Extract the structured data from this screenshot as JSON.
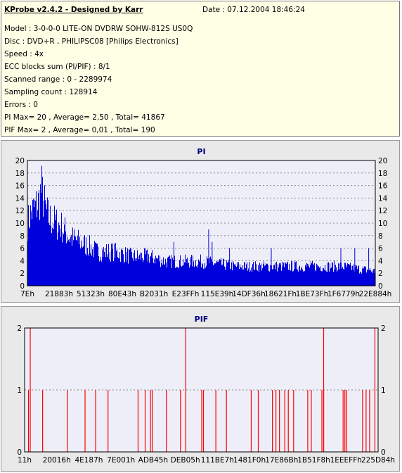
{
  "header": {
    "title": "KProbe v2.4.2 - Designed by Karr",
    "date": "Date : 07.12.2004 18:46:24",
    "lines": [
      "Model : 3-0-0-0 LITE-ON DVDRW SOHW-812S  US0Q",
      "Disc : DVD+R , PHILIPSC08 [Philips Electronics]",
      "Speed : 4x",
      "ECC blocks sum (PI/PIF) : 8/1",
      "Scanned range : 0 - 2289974",
      "Sampling count : 128914",
      "Errors : 0",
      "PI Max= 20 , Average= 2,50 , Total= 41867",
      "PIF Max= 2 , Average= 0,01 , Total= 190"
    ]
  },
  "chart_data": [
    {
      "type": "bar",
      "title": "PI",
      "ylim": [
        0,
        20
      ],
      "yticks": [
        0,
        2,
        4,
        6,
        8,
        10,
        12,
        14,
        16,
        18,
        20
      ],
      "xticks": [
        "7Eh",
        "21883h",
        "51323h",
        "80E43h",
        "B2031h",
        "E23FFh",
        "115E39h",
        "14DF36h",
        "18621Fh",
        "1BE73Fh",
        "1F6779h",
        "22E884h"
      ],
      "grid": true,
      "color": "#0000dd",
      "envelope": [
        [
          0,
          13
        ],
        [
          0.01,
          15
        ],
        [
          0.02,
          16
        ],
        [
          0.03,
          17
        ],
        [
          0.04,
          20
        ],
        [
          0.05,
          16
        ],
        [
          0.06,
          14
        ],
        [
          0.08,
          13
        ],
        [
          0.1,
          12
        ],
        [
          0.12,
          10
        ],
        [
          0.15,
          9
        ],
        [
          0.18,
          8
        ],
        [
          0.2,
          7
        ],
        [
          0.25,
          7
        ],
        [
          0.3,
          6
        ],
        [
          0.35,
          6
        ],
        [
          0.4,
          5
        ],
        [
          0.5,
          5
        ],
        [
          0.6,
          4
        ],
        [
          0.7,
          4
        ],
        [
          0.8,
          4
        ],
        [
          0.9,
          4
        ],
        [
          1,
          3
        ]
      ],
      "spikes": [
        [
          0.52,
          9
        ],
        [
          0.53,
          7
        ],
        [
          0.42,
          7
        ],
        [
          0.58,
          6
        ],
        [
          0.7,
          6
        ],
        [
          0.9,
          6
        ],
        [
          0.94,
          6
        ],
        [
          0.98,
          6
        ]
      ]
    },
    {
      "type": "bar",
      "title": "PIF",
      "ylim": [
        0,
        2
      ],
      "yticks": [
        0,
        1,
        2
      ],
      "xticks": [
        "11h",
        "20016h",
        "4E187h",
        "7E001h",
        "ADB45h",
        "DEB05h",
        "111BE7h",
        "1481F0h",
        "17E86Bh",
        "1B51F8h",
        "1EEEFFh",
        "225D84h"
      ],
      "grid": true,
      "color": "#ff0000",
      "values_at": [
        [
          0.01,
          1
        ],
        [
          0.015,
          2
        ],
        [
          0.05,
          1
        ],
        [
          0.12,
          1
        ],
        [
          0.17,
          1
        ],
        [
          0.2,
          1
        ],
        [
          0.235,
          1
        ],
        [
          0.32,
          1
        ],
        [
          0.34,
          1
        ],
        [
          0.355,
          1
        ],
        [
          0.36,
          1
        ],
        [
          0.4,
          1
        ],
        [
          0.44,
          1
        ],
        [
          0.455,
          2
        ],
        [
          0.5,
          1
        ],
        [
          0.505,
          1
        ],
        [
          0.54,
          1
        ],
        [
          0.57,
          1
        ],
        [
          0.64,
          1
        ],
        [
          0.66,
          1
        ],
        [
          0.7,
          1
        ],
        [
          0.71,
          1
        ],
        [
          0.72,
          1
        ],
        [
          0.735,
          1
        ],
        [
          0.745,
          1
        ],
        [
          0.76,
          1
        ],
        [
          0.8,
          1
        ],
        [
          0.81,
          1
        ],
        [
          0.84,
          1
        ],
        [
          0.845,
          1
        ],
        [
          0.845,
          2
        ],
        [
          0.9,
          1
        ],
        [
          0.905,
          1
        ],
        [
          0.91,
          1
        ],
        [
          0.955,
          1
        ],
        [
          0.965,
          1
        ],
        [
          0.975,
          1
        ],
        [
          0.99,
          2
        ]
      ]
    }
  ]
}
